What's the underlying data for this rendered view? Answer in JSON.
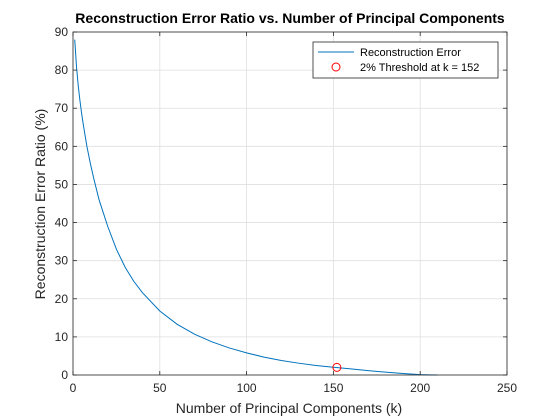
{
  "chart_data": {
    "type": "line",
    "title": "Reconstruction Error Ratio vs. Number of Principal Components",
    "xlabel": "Number of Principal Components (k)",
    "ylabel": "Reconstruction Error Ratio (%)",
    "xlim": [
      0,
      250
    ],
    "ylim": [
      0,
      90
    ],
    "xticks": [
      0,
      50,
      100,
      150,
      200,
      250
    ],
    "yticks": [
      0,
      10,
      20,
      30,
      40,
      50,
      60,
      70,
      80,
      90
    ],
    "grid": true,
    "legend_position": "top-right",
    "series": [
      {
        "name": "Reconstruction Error",
        "color": "#0072BD",
        "x": [
          1,
          2,
          3,
          4,
          5,
          6,
          8,
          10,
          12,
          15,
          20,
          25,
          30,
          35,
          40,
          50,
          60,
          70,
          80,
          90,
          100,
          110,
          120,
          130,
          140,
          150,
          160,
          170,
          180,
          190,
          200,
          205,
          210
        ],
        "y": [
          88,
          81,
          76,
          72,
          68.5,
          65.5,
          60,
          55.5,
          51.5,
          46,
          39,
          33,
          28.3,
          24.6,
          21.6,
          16.8,
          13.3,
          10.7,
          8.7,
          7.1,
          5.8,
          4.7,
          3.8,
          3.1,
          2.5,
          2.05,
          1.6,
          1.15,
          0.75,
          0.4,
          0.1,
          0.03,
          0
        ]
      }
    ],
    "marker": {
      "name": "2% Threshold at k = 152",
      "x": 152,
      "y": 2.0,
      "color": "#FF0000"
    }
  }
}
